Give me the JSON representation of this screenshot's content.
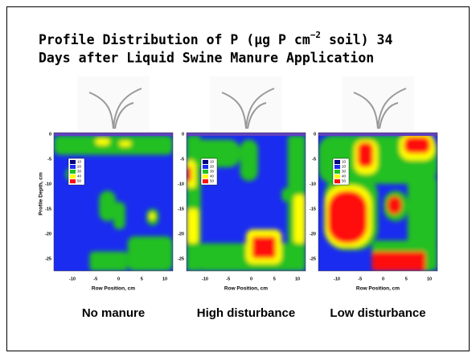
{
  "title": {
    "line1": "Profile Distribution of P (µg P cm",
    "superscript": "−2",
    "line1_end": " soil) 34",
    "line2": "Days after Liquid Swine Manure Application"
  },
  "axes": {
    "x_label": "Row Position, cm",
    "y_label": "Profile Depth, cm",
    "xticks": [
      "-10",
      "-5",
      "0",
      "5",
      "10"
    ],
    "yticks": [
      "0",
      "-5",
      "-10",
      "-15",
      "-20",
      "-25"
    ]
  },
  "legend": [
    {
      "label": "10",
      "color": "#000080"
    },
    {
      "label": "20",
      "color": "#1a2cf0"
    },
    {
      "label": "30",
      "color": "#22c020"
    },
    {
      "label": "40",
      "color": "#ffff00"
    },
    {
      "label": "50",
      "color": "#ff1010"
    }
  ],
  "panels": [
    {
      "caption": "No manure"
    },
    {
      "caption": "High disturbance"
    },
    {
      "caption": "Low disturbance"
    }
  ]
}
